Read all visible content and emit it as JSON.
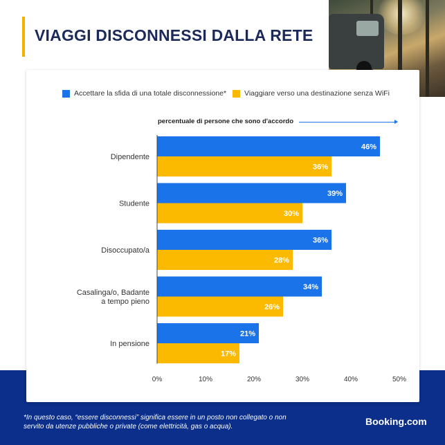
{
  "title": "VIAGGI DISCONNESSI DALLA RETE",
  "footnote": "*In questo caso, “essere disconnessi” significa essere in un posto non collegato o non servito da utenze pubbliche o private (come elettricità, gas o acqua).",
  "brand": "Booking.com",
  "colors": {
    "series_a": "#1a73e8",
    "series_b": "#fbb900",
    "navy": "#0b2f8a",
    "accent": "#f5b100"
  },
  "chart_data": {
    "type": "bar",
    "orientation": "horizontal",
    "xlabel": "percentuale di persone che sono d'accordo",
    "categories": [
      "Dipendente",
      "Studente",
      "Disoccupato/a",
      "Casalinga/o, Badante a tempo pieno",
      "In pensione"
    ],
    "category_lines": [
      [
        "Dipendente"
      ],
      [
        "Studente"
      ],
      [
        "Disoccupato/a"
      ],
      [
        "Casalinga/o, Badante",
        "a tempo pieno"
      ],
      [
        "In pensione"
      ]
    ],
    "series": [
      {
        "name": "Accettare la sfida di una totale disconnessione*",
        "values": [
          46,
          39,
          36,
          34,
          21
        ]
      },
      {
        "name": "Viaggiare verso una destinazione senza WiFi",
        "values": [
          36,
          30,
          28,
          26,
          17
        ]
      }
    ],
    "xlim": [
      0,
      50
    ],
    "ticks": [
      0,
      10,
      20,
      30,
      40,
      50
    ],
    "tick_labels": [
      "0%",
      "10%",
      "20%",
      "30%",
      "40%",
      "50%"
    ],
    "value_suffix": "%",
    "legend_position": "top",
    "grid": false
  }
}
